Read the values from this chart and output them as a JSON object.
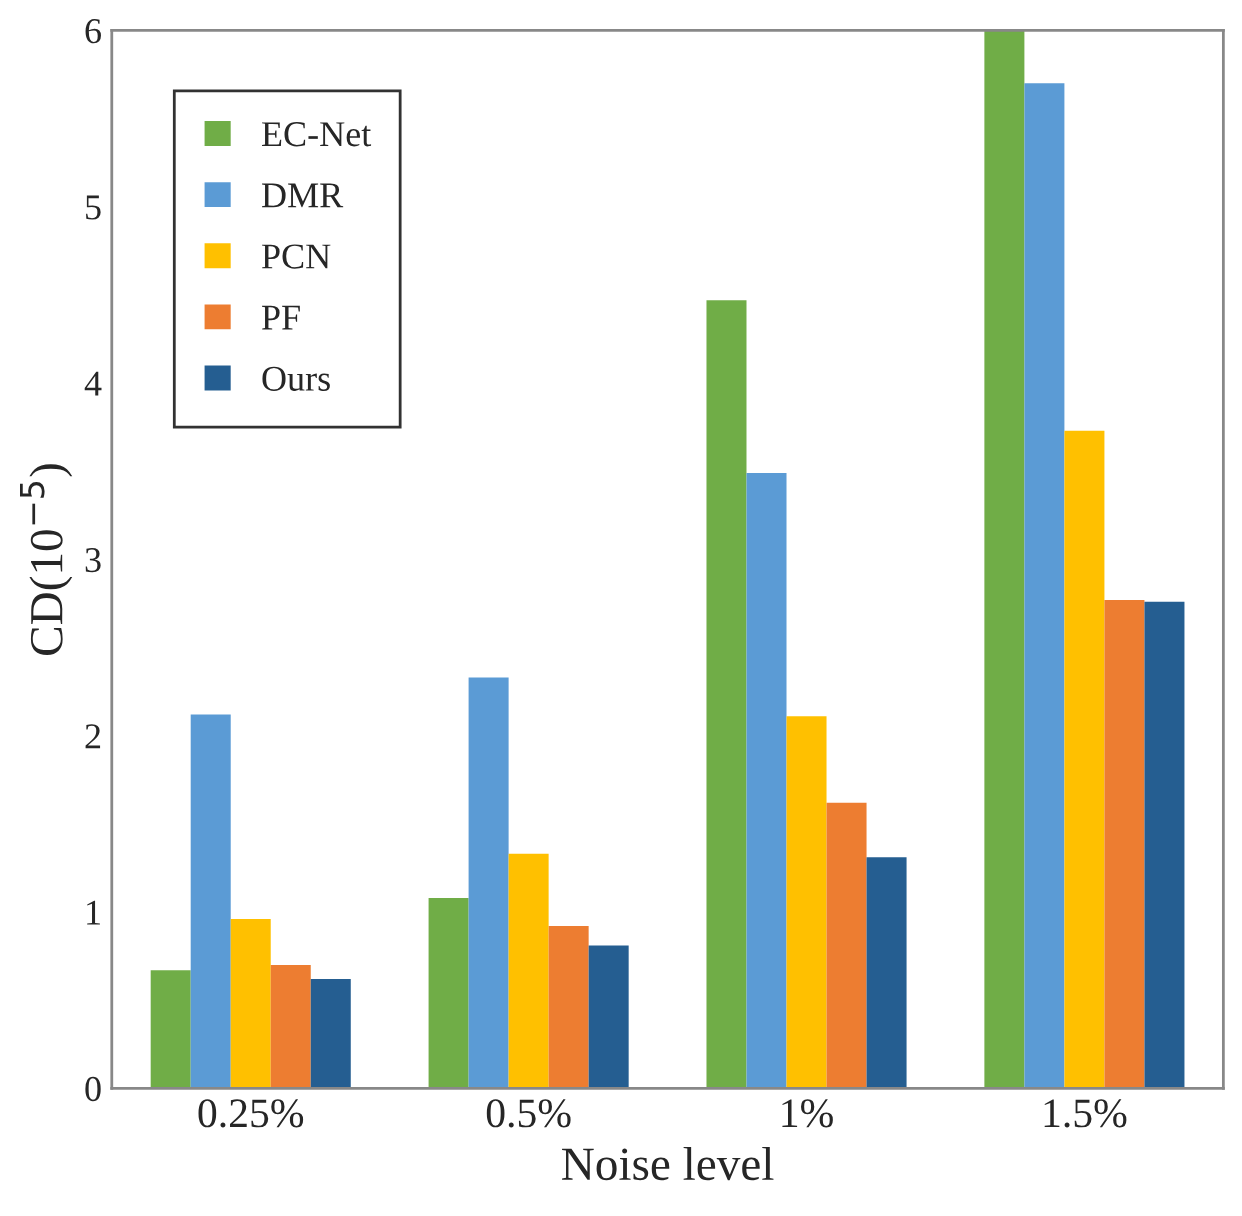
{
  "chart_data": {
    "type": "bar",
    "xlabel": "Noise level",
    "ylabel": "CD(10$^{−5}$)",
    "categories": [
      "0.25%",
      "0.5%",
      "1%",
      "1.5%"
    ],
    "series": [
      {
        "name": "EC-Net",
        "color": "#70ad47",
        "values": [
          0.67,
          1.08,
          4.47,
          6.0
        ]
      },
      {
        "name": "DMR",
        "color": "#5b9bd5",
        "values": [
          2.12,
          2.33,
          3.49,
          5.7
        ]
      },
      {
        "name": "PCN",
        "color": "#ffc000",
        "values": [
          0.96,
          1.33,
          2.11,
          3.73
        ]
      },
      {
        "name": "PF",
        "color": "#ed7d31",
        "values": [
          0.7,
          0.92,
          1.62,
          2.77
        ]
      },
      {
        "name": "Ours",
        "color": "#255e91",
        "values": [
          0.62,
          0.81,
          1.31,
          2.76
        ]
      }
    ],
    "ylim": [
      0,
      6
    ],
    "yticks": [
      0,
      1,
      2,
      3,
      4,
      5,
      6
    ],
    "grid": false,
    "legend": "top left"
  }
}
